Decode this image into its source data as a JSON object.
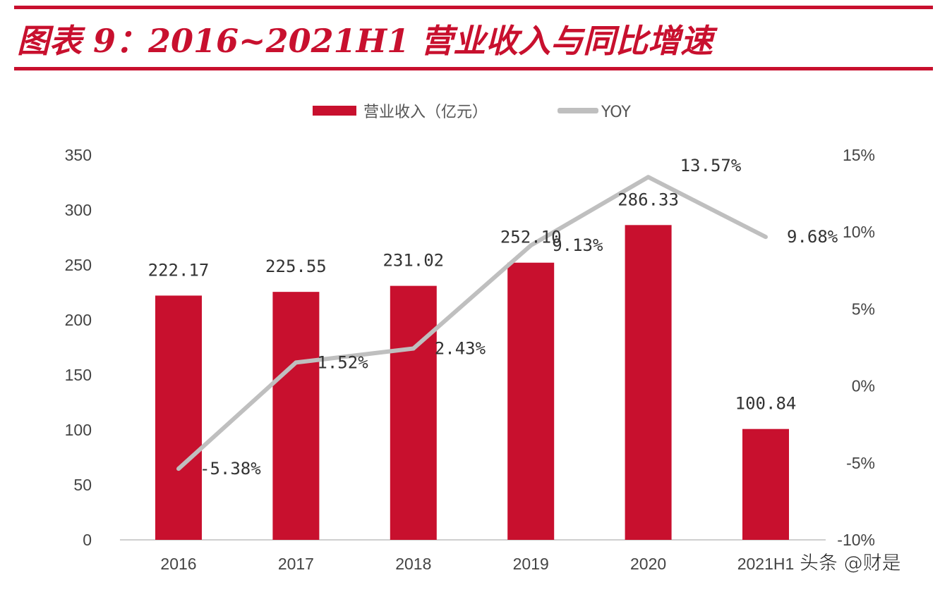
{
  "chart_data": {
    "type": "bar+line",
    "title": "图表 9：2016~2021H1 营业收入与同比增速",
    "categories": [
      "2016",
      "2017",
      "2018",
      "2019",
      "2020",
      "2021H1"
    ],
    "series": [
      {
        "name": "营业收入（亿元）",
        "type": "bar",
        "axis": "left",
        "color": "#c8102e",
        "values": [
          222.17,
          225.55,
          231.02,
          252.1,
          286.33,
          100.84
        ],
        "labels": [
          "222.17",
          "225.55",
          "231.02",
          "252.10",
          "286.33",
          "100.84"
        ]
      },
      {
        "name": "YOY",
        "type": "line",
        "axis": "right",
        "color": "#bfbfbf",
        "values": [
          -5.38,
          1.52,
          2.43,
          9.13,
          13.57,
          9.68
        ],
        "labels": [
          "-5.38%",
          "1.52%",
          "2.43%",
          "9.13%",
          "13.57%",
          "9.68%"
        ]
      }
    ],
    "left_axis": {
      "ylim": [
        0,
        350
      ],
      "ticks": [
        "0",
        "50",
        "100",
        "150",
        "200",
        "250",
        "300",
        "350"
      ]
    },
    "right_axis": {
      "ylim": [
        -10,
        15
      ],
      "ticks": [
        "-10%",
        "-5%",
        "0%",
        "5%",
        "10%",
        "15%"
      ]
    },
    "legend_placement": "top",
    "grid": false
  },
  "watermark": "头条 @财是"
}
